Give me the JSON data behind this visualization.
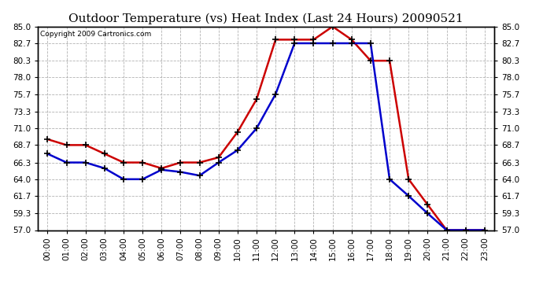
{
  "title": "Outdoor Temperature (vs) Heat Index (Last 24 Hours) 20090521",
  "copyright": "Copyright 2009 Cartronics.com",
  "hours": [
    0,
    1,
    2,
    3,
    4,
    5,
    6,
    7,
    8,
    9,
    10,
    11,
    12,
    13,
    14,
    15,
    16,
    17,
    18,
    19,
    20,
    21,
    22,
    23
  ],
  "temp_blue": [
    67.5,
    66.3,
    66.3,
    65.5,
    64.0,
    64.0,
    65.3,
    65.0,
    64.5,
    66.3,
    68.0,
    71.0,
    75.7,
    82.7,
    82.7,
    82.7,
    82.7,
    82.7,
    64.0,
    61.7,
    59.3,
    57.0,
    57.0,
    57.0
  ],
  "heat_red": [
    69.5,
    68.7,
    68.7,
    67.5,
    66.3,
    66.3,
    65.5,
    66.3,
    66.3,
    67.0,
    70.5,
    75.0,
    83.2,
    83.2,
    83.2,
    85.0,
    83.2,
    80.3,
    80.3,
    64.0,
    60.5,
    57.0,
    57.0,
    57.0
  ],
  "ylim": [
    57.0,
    85.0
  ],
  "yticks": [
    57.0,
    59.3,
    61.7,
    64.0,
    66.3,
    68.7,
    71.0,
    73.3,
    75.7,
    78.0,
    80.3,
    82.7,
    85.0
  ],
  "line_color_blue": "#0000cc",
  "line_color_red": "#cc0000",
  "bg_color": "#ffffff",
  "grid_color": "#aaaaaa",
  "title_fontsize": 11,
  "tick_fontsize": 7.5,
  "copyright_fontsize": 6.5
}
